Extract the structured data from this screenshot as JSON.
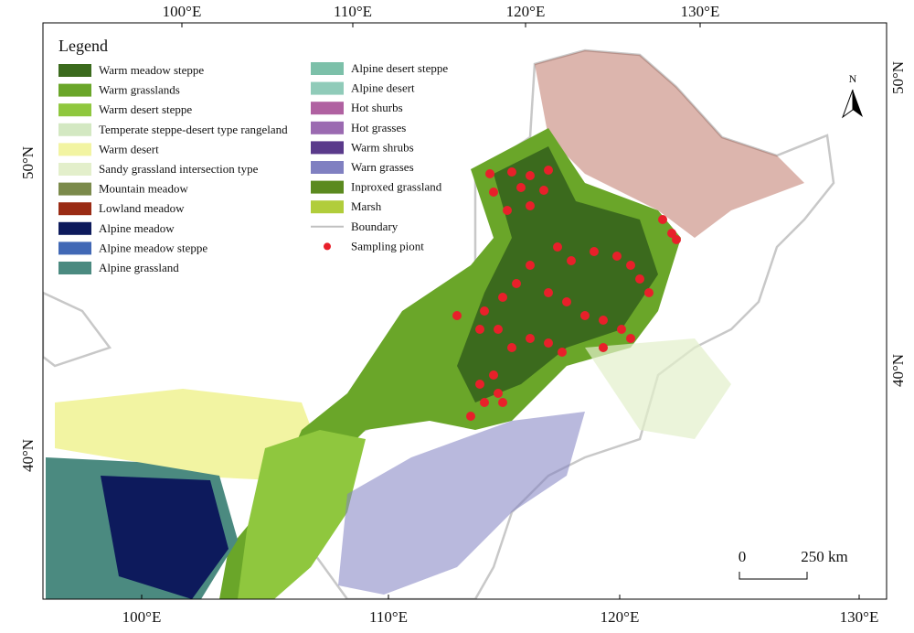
{
  "legend": {
    "title": "Legend",
    "items": [
      {
        "label": "Warm meadow steppe",
        "color": "#3b6a1d",
        "symbol": "patch"
      },
      {
        "label": "Warm grasslands",
        "color": "#6aa629",
        "symbol": "patch"
      },
      {
        "label": "Warm desert steppe",
        "color": "#8fc73e",
        "symbol": "patch"
      },
      {
        "label": "Temperate steppe-desert type rangeland",
        "color": "#d3e8c2",
        "symbol": "patch"
      },
      {
        "label": "Warm desert",
        "color": "#f2f4a2",
        "symbol": "patch"
      },
      {
        "label": "Sandy grassland intersection type",
        "color": "#e3efcb",
        "symbol": "patch"
      },
      {
        "label": "Mountain meadow",
        "color": "#7b8a4b",
        "symbol": "patch"
      },
      {
        "label": "Lowland meadow",
        "color": "#9a2b14",
        "symbol": "patch"
      },
      {
        "label": "Alpine meadow",
        "color": "#0d1a5c",
        "symbol": "patch"
      },
      {
        "label": "Alpine meadow steppe",
        "color": "#4168b5",
        "symbol": "patch"
      },
      {
        "label": "Alpine grassland",
        "color": "#4b8a80",
        "symbol": "patch"
      },
      {
        "label": "Alpine desert steppe",
        "color": "#7cc0a9",
        "symbol": "patch"
      },
      {
        "label": "Alpine desert",
        "color": "#90cbb9",
        "symbol": "patch"
      },
      {
        "label": "Hot shurbs",
        "color": "#b061a1",
        "symbol": "patch"
      },
      {
        "label": "Hot grasses",
        "color": "#9b6ab1",
        "symbol": "patch"
      },
      {
        "label": "Warm shrubs",
        "color": "#5a3a8b",
        "symbol": "patch"
      },
      {
        "label": "Warn grasses",
        "color": "#8080c1",
        "symbol": "patch"
      },
      {
        "label": "Inproxed grassland",
        "color": "#5b8a1f",
        "symbol": "patch"
      },
      {
        "label": "Marsh",
        "color": "#b1cd3b",
        "symbol": "patch"
      },
      {
        "label": "Boundary",
        "color": "#c0c0c0",
        "symbol": "line"
      },
      {
        "label": "Sampling piont",
        "color": "#e8202a",
        "symbol": "dot"
      }
    ]
  },
  "axes": {
    "top": [
      "100°E",
      "110°E",
      "120°E",
      "130°E"
    ],
    "bottom": [
      "100°E",
      "110°E",
      "120°E",
      "130°E"
    ],
    "left": [
      "50°N",
      "40°N"
    ],
    "right": [
      "50°N",
      "40°N"
    ]
  },
  "scale_bar": {
    "labels": [
      "0",
      "250 km"
    ]
  },
  "north_arrow": "N"
}
